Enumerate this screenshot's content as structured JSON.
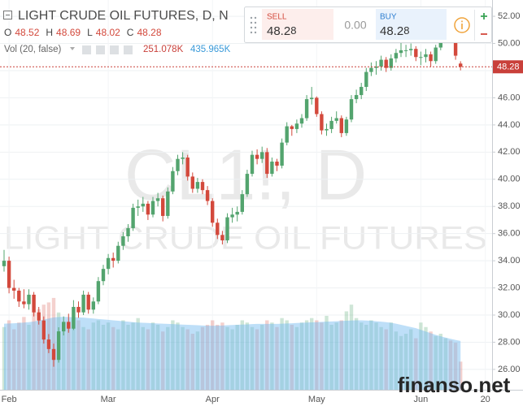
{
  "chart_data": {
    "type": "candlestick",
    "title": "LIGHT CRUDE OIL FUTURES, D, N",
    "watermark": [
      "CL1!, D",
      "LIGHT CRUDE OIL FUTURES"
    ],
    "ohlc_labels": [
      "O",
      "H",
      "L",
      "C"
    ],
    "volume_legend": {
      "name": "Vol (20, false)",
      "last": "251.078K",
      "ma": "435.965K"
    },
    "trade_panel": {
      "sell_label": "SELL",
      "sell_price": [
        "48.2",
        "8"
      ],
      "spread": "0.00",
      "buy_label": "BUY",
      "buy_price": [
        "48.2",
        "8"
      ]
    },
    "site": "finanso.net",
    "colors": {
      "up": "#53a46e",
      "down": "#d3493c",
      "volume_up": "rgba(83,164,110,0.28)",
      "volume_down": "rgba(211,73,60,0.25)",
      "volume_ma": "rgba(110,185,240,0.45)",
      "last_price": "#c9403a"
    },
    "grid": true,
    "ylim": [
      24.5,
      53.2
    ],
    "yticks": [
      {
        "value": 26,
        "label": "26.00"
      },
      {
        "value": 28,
        "label": "28.00"
      },
      {
        "value": 30,
        "label": "30.00"
      },
      {
        "value": 32,
        "label": "32.00"
      },
      {
        "value": 34,
        "label": "34.00"
      },
      {
        "value": 36,
        "label": "36.00"
      },
      {
        "value": 38,
        "label": "38.00"
      },
      {
        "value": 40,
        "label": "40.00"
      },
      {
        "value": 42,
        "label": "42.00"
      },
      {
        "value": 44,
        "label": "44.00"
      },
      {
        "value": 46,
        "label": "46.00"
      },
      {
        "value": 48,
        "label": "48.00"
      },
      {
        "value": 50,
        "label": "50.00"
      },
      {
        "value": 52,
        "label": "52.00"
      }
    ],
    "vlim": [
      0,
      3480
    ],
    "categories": [
      null,
      "Feb",
      null,
      null,
      null,
      null,
      null,
      null,
      null,
      null,
      null,
      null,
      null,
      null,
      null,
      null,
      null,
      null,
      null,
      null,
      null,
      "Mar",
      null,
      null,
      null,
      null,
      null,
      null,
      null,
      null,
      null,
      null,
      null,
      null,
      null,
      null,
      null,
      null,
      null,
      null,
      null,
      null,
      "Apr",
      null,
      null,
      null,
      null,
      null,
      null,
      null,
      null,
      null,
      null,
      null,
      null,
      null,
      null,
      null,
      null,
      null,
      null,
      null,
      null,
      "May",
      null,
      null,
      null,
      null,
      null,
      null,
      null,
      null,
      null,
      null,
      null,
      null,
      null,
      null,
      null,
      null,
      null,
      null,
      null,
      null,
      "Jun",
      null,
      null,
      null,
      null,
      null,
      null,
      null,
      null,
      null,
      null,
      null,
      null,
      "20"
    ],
    "open": [
      33.6,
      34.0,
      32.0,
      31.8,
      31.0,
      30.8,
      31.5,
      30.2,
      29.6,
      28.2,
      27.5,
      26.7,
      28.8,
      29.5,
      29.0,
      30.6,
      30.2,
      31.5,
      30.4,
      31.0,
      32.5,
      33.4,
      34.2,
      34.0,
      35.1,
      35.8,
      36.4,
      37.9,
      38.0,
      38.2,
      37.4,
      38.4,
      38.6,
      37.3,
      39.1,
      40.6,
      41.5,
      41.6,
      40.2,
      39.3,
      39.8,
      39.2,
      38.4,
      36.8,
      35.9,
      35.5,
      37.2,
      37.4,
      37.6,
      38.9,
      40.4,
      41.8,
      41.5,
      42.0,
      40.4,
      41.3,
      41.0,
      42.7,
      43.9,
      43.7,
      44.1,
      44.5,
      45.9,
      46.0,
      44.8,
      43.6,
      43.7,
      44.3,
      44.5,
      43.4,
      44.4,
      45.9,
      46.2,
      46.8,
      47.9,
      48.2,
      48.3,
      48.8,
      48.2,
      48.9,
      49.3,
      49.5,
      49.5,
      49.6,
      49.0,
      49.0,
      49.2,
      48.7,
      49.7,
      50.4,
      51.4,
      50.6,
      48.52,
      null,
      null,
      null,
      null,
      null
    ],
    "high": [
      34.8,
      34.3,
      32.6,
      32.0,
      31.9,
      31.9,
      31.7,
      30.6,
      29.9,
      28.6,
      27.9,
      29.1,
      29.9,
      30.1,
      31.1,
      31.0,
      31.8,
      31.7,
      31.3,
      32.8,
      33.7,
      34.5,
      34.6,
      35.4,
      36.1,
      36.7,
      38.2,
      38.5,
      38.7,
      38.4,
      38.7,
      39.0,
      38.8,
      39.4,
      40.9,
      41.8,
      42.0,
      41.8,
      40.5,
      40.1,
      40.0,
      39.5,
      38.6,
      37.1,
      36.2,
      37.5,
      37.9,
      38.0,
      39.2,
      40.7,
      42.1,
      42.2,
      42.4,
      42.3,
      41.6,
      41.5,
      43.0,
      44.2,
      44.0,
      44.4,
      44.8,
      46.2,
      46.8,
      46.1,
      45.0,
      44.1,
      44.6,
      45.0,
      44.7,
      44.6,
      46.2,
      46.6,
      47.1,
      48.2,
      48.6,
      48.7,
      49.1,
      49.0,
      49.2,
      49.6,
      50.2,
      49.9,
      50.0,
      49.8,
      49.4,
      49.6,
      49.4,
      49.9,
      50.6,
      51.6,
      51.7,
      50.8,
      48.69,
      null,
      null,
      null,
      null,
      null
    ],
    "low": [
      33.2,
      31.6,
      31.2,
      30.6,
      30.5,
      30.4,
      29.9,
      29.3,
      27.9,
      27.2,
      26.2,
      26.5,
      28.5,
      28.7,
      28.9,
      29.8,
      30.0,
      30.1,
      30.1,
      30.8,
      32.2,
      33.0,
      33.5,
      33.8,
      34.8,
      35.4,
      36.2,
      37.3,
      37.6,
      37.0,
      37.2,
      38.0,
      36.9,
      37.1,
      38.9,
      40.3,
      41.1,
      39.9,
      39.0,
      39.0,
      38.9,
      38.1,
      36.5,
      35.6,
      35.2,
      35.3,
      36.8,
      36.9,
      37.4,
      38.7,
      40.2,
      41.1,
      41.2,
      40.1,
      40.2,
      40.6,
      40.8,
      42.5,
      43.2,
      43.4,
      43.8,
      44.3,
      45.5,
      44.6,
      43.3,
      43.2,
      43.4,
      44.1,
      43.1,
      43.2,
      44.2,
      45.6,
      45.9,
      46.5,
      47.6,
      47.7,
      48.0,
      47.9,
      48.0,
      48.6,
      49.0,
      49.0,
      49.1,
      48.7,
      48.4,
      48.6,
      48.3,
      48.5,
      49.5,
      50.2,
      50.3,
      48.8,
      48.02,
      null,
      null,
      null,
      null,
      null
    ],
    "close": [
      34.0,
      32.0,
      31.8,
      31.0,
      30.8,
      31.5,
      30.2,
      29.6,
      28.2,
      27.5,
      26.7,
      28.8,
      29.5,
      29.0,
      30.6,
      30.2,
      31.5,
      30.4,
      31.0,
      32.5,
      33.4,
      34.2,
      34.0,
      35.1,
      35.8,
      36.4,
      37.9,
      38.0,
      38.2,
      37.4,
      38.4,
      38.6,
      37.3,
      39.1,
      40.6,
      41.5,
      41.6,
      40.2,
      39.3,
      39.8,
      39.2,
      38.4,
      36.8,
      35.9,
      35.5,
      37.2,
      37.4,
      37.6,
      38.9,
      40.4,
      41.8,
      41.5,
      42.0,
      40.4,
      41.3,
      41.0,
      42.7,
      43.9,
      43.7,
      44.1,
      44.5,
      45.9,
      46.0,
      44.8,
      43.6,
      43.7,
      44.3,
      44.5,
      43.4,
      44.4,
      45.9,
      46.2,
      46.8,
      47.9,
      48.2,
      48.3,
      48.8,
      48.2,
      48.9,
      49.3,
      49.5,
      49.5,
      49.6,
      49.0,
      49.0,
      49.2,
      48.7,
      49.7,
      50.4,
      51.4,
      50.6,
      49.1,
      48.28,
      null,
      null,
      null,
      null,
      null
    ],
    "volume": [
      560,
      620,
      540,
      600,
      650,
      580,
      700,
      720,
      760,
      780,
      820,
      690,
      600,
      580,
      640,
      620,
      560,
      540,
      600,
      620,
      580,
      600,
      560,
      540,
      620,
      580,
      600,
      640,
      560,
      540,
      600,
      580,
      520,
      560,
      620,
      600,
      560,
      540,
      500,
      520,
      560,
      580,
      620,
      580,
      600,
      560,
      540,
      580,
      620,
      600,
      560,
      540,
      580,
      620,
      600,
      560,
      640,
      620,
      580,
      560,
      600,
      620,
      640,
      620,
      600,
      660,
      580,
      600,
      620,
      700,
      760,
      640,
      600,
      580,
      620,
      600,
      560,
      540,
      600,
      520,
      480,
      500,
      540,
      460,
      600,
      560,
      520,
      480,
      500,
      460,
      440,
      420,
      251.078,
      null,
      null,
      null,
      null,
      null
    ],
    "volume_ma": [
      590,
      592,
      594,
      596,
      600,
      604,
      610,
      618,
      626,
      636,
      646,
      650,
      652,
      650,
      648,
      646,
      644,
      640,
      636,
      632,
      628,
      624,
      620,
      616,
      612,
      608,
      604,
      600,
      598,
      596,
      594,
      592,
      590,
      588,
      586,
      584,
      582,
      580,
      578,
      576,
      574,
      572,
      572,
      572,
      574,
      576,
      578,
      580,
      582,
      584,
      586,
      588,
      588,
      588,
      588,
      588,
      590,
      592,
      594,
      596,
      598,
      600,
      602,
      604,
      606,
      608,
      610,
      612,
      614,
      616,
      618,
      620,
      620,
      618,
      616,
      612,
      608,
      604,
      598,
      590,
      580,
      570,
      560,
      550,
      535,
      520,
      505,
      490,
      478,
      466,
      455,
      445,
      435.965,
      null,
      null,
      null,
      null,
      null
    ]
  }
}
